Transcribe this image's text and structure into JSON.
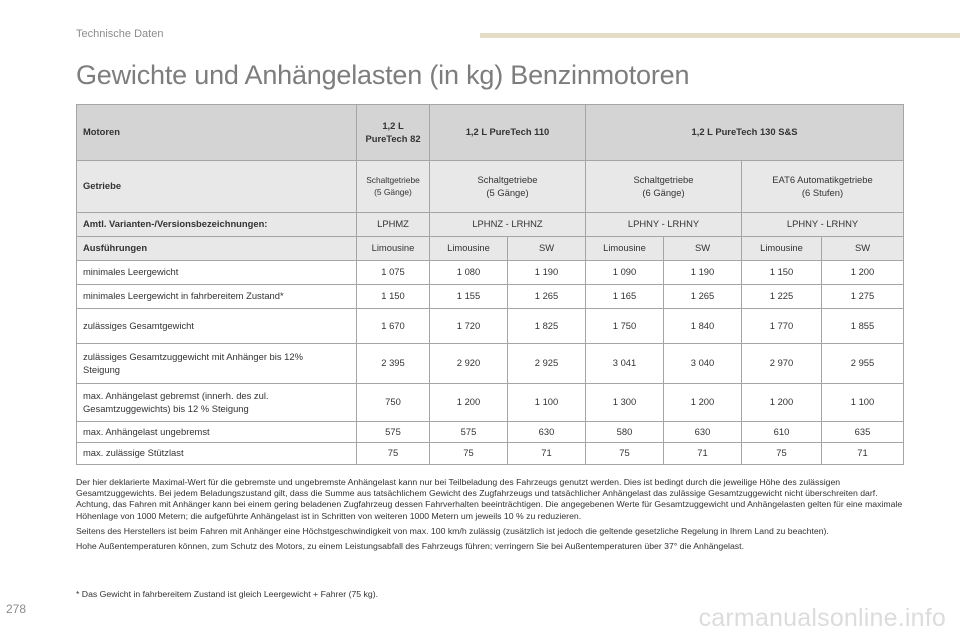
{
  "header": {
    "section_label": "Technische Daten",
    "title": "Gewichte und Anhängelasten (in kg) Benzinmotoren"
  },
  "table": {
    "motoren": {
      "label": "Motoren",
      "engine_1": "1,2 L\nPureTech 82",
      "engine_2": "1,2 L PureTech 110",
      "engine_3": "1,2 L PureTech 130 S&S"
    },
    "getriebe": {
      "label": "Getriebe",
      "g1": "Schaltgetriebe\n(5 Gänge)",
      "g2": "Schaltgetriebe\n(5 Gänge)",
      "g3": "Schaltgetriebe\n(6 Gänge)",
      "g4": "EAT6 Automatikgetriebe\n(6 Stufen)"
    },
    "varianten": {
      "label": "Amtl. Varianten-/Versionsbezeichnungen:",
      "v1": "LPHMZ",
      "v2": "LPHNZ - LRHNZ",
      "v3": "LPHNY - LRHNY",
      "v4": "LPHNY - LRHNY"
    },
    "ausfuehrungen": {
      "label": "Ausführungen",
      "values": [
        "Limousine",
        "Limousine",
        "SW",
        "Limousine",
        "SW",
        "Limousine",
        "SW"
      ]
    },
    "rows": [
      {
        "label": "minimales Leergewicht",
        "values": [
          "1 075",
          "1 080",
          "1 190",
          "1 090",
          "1 190",
          "1 150",
          "1 200"
        ]
      },
      {
        "label": "minimales Leergewicht in fahrbereitem Zustand*",
        "values": [
          "1 150",
          "1 155",
          "1 265",
          "1 165",
          "1 265",
          "1 225",
          "1 275"
        ]
      },
      {
        "label": "zulässiges Gesamtgewicht",
        "values": [
          "1 670",
          "1 720",
          "1 825",
          "1 750",
          "1 840",
          "1 770",
          "1 855"
        ]
      },
      {
        "label": "zulässiges Gesamtzuggewicht mit Anhänger bis 12%\nSteigung",
        "values": [
          "2 395",
          "2 920",
          "2 925",
          "3 041",
          "3 040",
          "2 970",
          "2 955"
        ]
      },
      {
        "label": "max. Anhängelast gebremst (innerh. des zul.\nGesamtzuggewichts) bis 12 % Steigung",
        "values": [
          "750",
          "1 200",
          "1 100",
          "1 300",
          "1 200",
          "1 200",
          "1 100"
        ]
      },
      {
        "label": "max. Anhängelast ungebremst",
        "values": [
          "575",
          "575",
          "630",
          "580",
          "630",
          "610",
          "635"
        ]
      },
      {
        "label": "max. zulässige Stützlast",
        "values": [
          "75",
          "75",
          "71",
          "75",
          "71",
          "75",
          "71"
        ]
      }
    ]
  },
  "notes": {
    "p1": "Der hier deklarierte Maximal-Wert für die gebremste und ungebremste Anhängelast kann nur bei Teilbeladung des Fahrzeugs genutzt werden. Dies ist bedingt durch die jeweilige Höhe des zulässigen Gesamtzuggewichts. Bei jedem Beladungszustand gilt, dass die Summe aus tatsächlichem Gewicht des Zugfahrzeugs und tatsächlicher Anhängelast das zulässige Gesamtzuggewicht nicht überschreiten darf. Achtung, das Fahren mit Anhänger kann bei einem gering beladenen Zugfahrzeug dessen Fahrverhalten beeinträchtigen. Die angegebenen Werte für Gesamtzuggewicht und Anhängelasten gelten für eine maximale Höhenlage von 1000 Metern; die aufgeführte Anhängelast ist in Schritten von weiteren 1000 Metern um jeweils 10 % zu reduzieren.",
    "p2": "Seitens des Herstellers ist beim Fahren mit Anhänger eine Höchstgeschwindigkeit von max. 100 km/h zulässig (zusätzlich ist jedoch die geltende gesetzliche Regelung in Ihrem Land zu beachten).",
    "p3": "Hohe Außentemperaturen können, zum Schutz des Motors, zu einem Leistungsabfall des Fahrzeugs führen; verringern Sie bei Außentemperaturen über 37° die Anhängelast."
  },
  "footnote": "* Das Gewicht in fahrbereitem Zustand ist gleich Leergewicht + Fahrer (75 kg).",
  "footer": {
    "page_number": "278",
    "watermark": "carmanualsonline.info"
  }
}
